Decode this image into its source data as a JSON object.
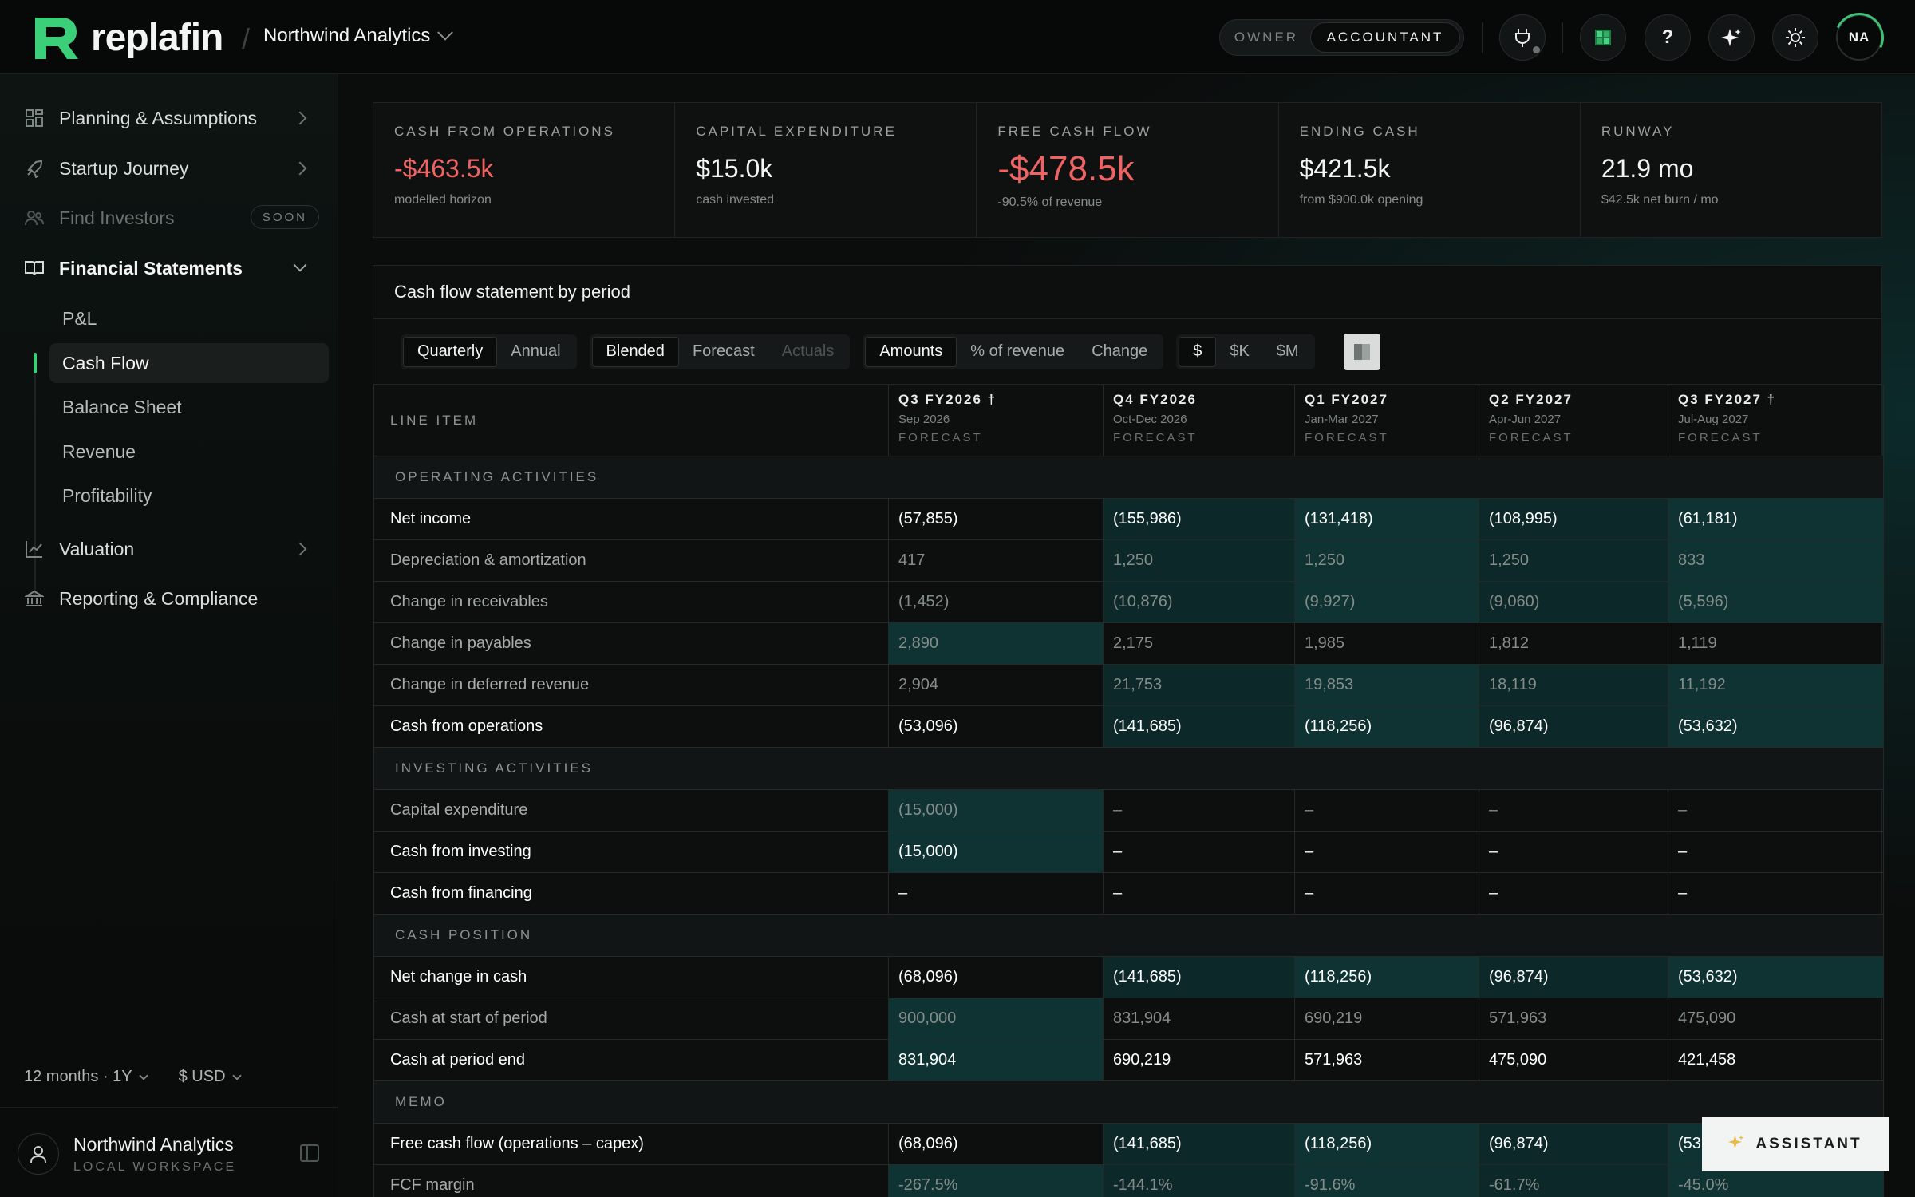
{
  "app": {
    "brand": "replafin",
    "org": "Northwind Analytics"
  },
  "roles": {
    "owner": "OWNER",
    "accountant": "ACCOUNTANT"
  },
  "top_icons": [
    "plug-icon",
    "sheet-icon",
    "help-icon",
    "sparkle-icon",
    "sun-icon"
  ],
  "help_label": "?",
  "avatar_initials": "NA",
  "sidebar": {
    "items": [
      {
        "label": "Planning & Assumptions"
      },
      {
        "label": "Startup Journey"
      },
      {
        "label": "Find Investors",
        "badge": "SOON"
      },
      {
        "label": "Financial Statements"
      },
      {
        "label": "Valuation"
      },
      {
        "label": "Reporting & Compliance"
      }
    ],
    "sub_items": [
      "P&L",
      "Cash Flow",
      "Balance Sheet",
      "Revenue",
      "Profitability"
    ],
    "active_sub": "Cash Flow",
    "horizon": "12 months · 1Y",
    "currency": "$ USD",
    "workspace_name": "Northwind Analytics",
    "workspace_type": "LOCAL WORKSPACE"
  },
  "kpis": [
    {
      "label": "CASH FROM OPERATIONS",
      "value": "-$463.5k",
      "sub": "modelled horizon"
    },
    {
      "label": "CAPITAL EXPENDITURE",
      "value": "$15.0k",
      "sub": "cash invested"
    },
    {
      "label": "FREE CASH FLOW",
      "value": "-$478.5k",
      "sub": "-90.5% of revenue"
    },
    {
      "label": "ENDING CASH",
      "value": "$421.5k",
      "sub": "from $900.0k opening"
    },
    {
      "label": "RUNWAY",
      "value": "21.9 mo",
      "sub": "$42.5k net burn / mo"
    }
  ],
  "panel": {
    "title": "Cash flow statement by period",
    "period_opts": [
      "Quarterly",
      "Annual"
    ],
    "scenario_opts": [
      "Blended",
      "Forecast",
      "Actuals"
    ],
    "view_opts": [
      "Amounts",
      "% of revenue",
      "Change"
    ],
    "unit_opts": [
      "$",
      "$K",
      "$M"
    ]
  },
  "table": {
    "line_item_header": "LINE ITEM",
    "periods": [
      {
        "title": "Q3 FY2026 †",
        "range": "Sep 2026",
        "tag": "FORECAST"
      },
      {
        "title": "Q4 FY2026",
        "range": "Oct-Dec 2026",
        "tag": "FORECAST"
      },
      {
        "title": "Q1 FY2027",
        "range": "Jan-Mar 2027",
        "tag": "FORECAST"
      },
      {
        "title": "Q2 FY2027",
        "range": "Apr-Jun 2027",
        "tag": "FORECAST"
      },
      {
        "title": "Q3 FY2027 †",
        "range": "Jul-Aug 2027",
        "tag": "FORECAST"
      }
    ],
    "sections": [
      {
        "title": "OPERATING ACTIVITIES",
        "rows": [
          {
            "label": "Net income",
            "style": "bold",
            "values": [
              "(57,855)",
              "(155,986)",
              "(131,418)",
              "(108,995)",
              "(61,181)"
            ]
          },
          {
            "label": "Depreciation & amortization",
            "style": "dim",
            "values": [
              "417",
              "1,250",
              "1,250",
              "1,250",
              "833"
            ]
          },
          {
            "label": "Change in receivables",
            "style": "dim",
            "values": [
              "(1,452)",
              "(10,876)",
              "(9,927)",
              "(9,060)",
              "(5,596)"
            ]
          },
          {
            "label": "Change in payables",
            "style": "dim",
            "values": [
              "2,890",
              "2,175",
              "1,985",
              "1,812",
              "1,119"
            ]
          },
          {
            "label": "Change in deferred revenue",
            "style": "dim",
            "values": [
              "2,904",
              "21,753",
              "19,853",
              "18,119",
              "11,192"
            ]
          },
          {
            "label": "Cash from operations",
            "style": "bold",
            "values": [
              "(53,096)",
              "(141,685)",
              "(118,256)",
              "(96,874)",
              "(53,632)"
            ]
          }
        ]
      },
      {
        "title": "INVESTING ACTIVITIES",
        "rows": [
          {
            "label": "Capital expenditure",
            "style": "dim",
            "values": [
              "(15,000)",
              "–",
              "–",
              "–",
              "–"
            ]
          },
          {
            "label": "Cash from investing",
            "style": "bold",
            "values": [
              "(15,000)",
              "–",
              "–",
              "–",
              "–"
            ]
          },
          {
            "label": "Cash from financing",
            "style": "bold",
            "values": [
              "–",
              "–",
              "–",
              "–",
              "–"
            ]
          }
        ]
      },
      {
        "title": "CASH POSITION",
        "rows": [
          {
            "label": "Net change in cash",
            "style": "bold",
            "values": [
              "(68,096)",
              "(141,685)",
              "(118,256)",
              "(96,874)",
              "(53,632)"
            ]
          },
          {
            "label": "Cash at start of period",
            "style": "dim",
            "values": [
              "900,000",
              "831,904",
              "690,219",
              "571,963",
              "475,090"
            ]
          },
          {
            "label": "Cash at period end",
            "style": "bold",
            "values": [
              "831,904",
              "690,219",
              "571,963",
              "475,090",
              "421,458"
            ]
          }
        ]
      },
      {
        "title": "MEMO",
        "rows": [
          {
            "label": "Free cash flow (operations – capex)",
            "style": "bold",
            "values": [
              "(68,096)",
              "(141,685)",
              "(118,256)",
              "(96,874)",
              "(53,632)"
            ]
          },
          {
            "label": "FCF margin",
            "style": "dim",
            "values": [
              "-267.5%",
              "-144.1%",
              "-91.6%",
              "-61.7%",
              "-45.0%"
            ]
          }
        ]
      }
    ]
  },
  "assistant": {
    "label": "ASSISTANT",
    "icon": "sparkle-icon"
  },
  "colors": {
    "accent": "#3ccf7a",
    "negative": "#f06363",
    "highlight": "#0f3233"
  }
}
